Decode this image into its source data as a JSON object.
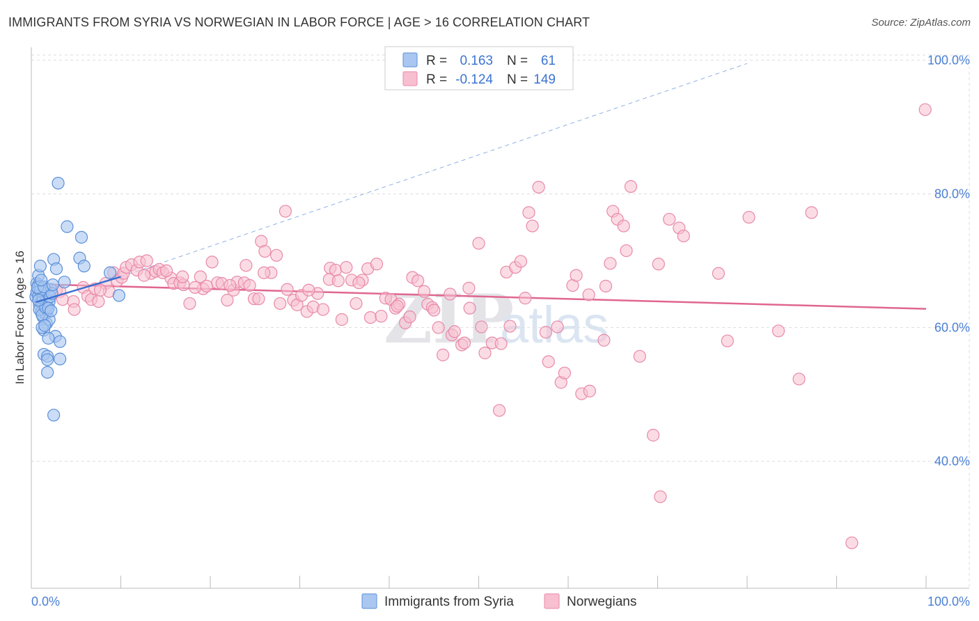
{
  "title": "IMMIGRANTS FROM SYRIA VS NORWEGIAN IN LABOR FORCE | AGE > 16 CORRELATION CHART",
  "source": "Source: ZipAtlas.com",
  "watermark": {
    "zip": "ZIP",
    "atlas": "atlas"
  },
  "colors": {
    "syria_fill": "#a9c7f0",
    "syria_stroke": "#5b8fd9",
    "syria_line": "#3b6fd1",
    "norway_fill": "#f7bfd0",
    "norway_stroke": "#e889a8",
    "norway_line": "#e06690",
    "grid": "#dddddd",
    "axis_label": "#4a7fd4"
  },
  "legend": {
    "rows": [
      {
        "r_label": "R =",
        "r_value": "0.163",
        "n_label": "N =",
        "n_value": "61"
      },
      {
        "r_label": "R =",
        "r_value": "-0.124",
        "n_label": "N =",
        "n_value": "149"
      }
    ]
  },
  "chart_data": {
    "type": "scatter",
    "title": "IMMIGRANTS FROM SYRIA VS NORWEGIAN IN LABOR FORCE | AGE > 16 CORRELATION CHART",
    "xlabel": "",
    "ylabel": "In Labor Force | Age > 16",
    "xlim": [
      0,
      100
    ],
    "ylim": [
      21,
      101.5
    ],
    "x_tick_labels": [
      "0.0%",
      "100.0%"
    ],
    "y_ticks": [
      40,
      60,
      80,
      100
    ],
    "y_tick_labels": [
      "40.0%",
      "60.0%",
      "80.0%",
      "100.0%"
    ],
    "grid": true,
    "legend_position": "top-center",
    "series": [
      {
        "name": "Immigrants from Syria",
        "r": 0.163,
        "n": 61,
        "trend": {
          "x": [
            0.5,
            10
          ],
          "y": [
            63.8,
            67.6
          ]
        },
        "trend_dashed": {
          "x": [
            10,
            80
          ],
          "y": [
            67.6,
            99.5
          ]
        },
        "points": [
          [
            0.6,
            66.6
          ],
          [
            0.7,
            65.9
          ],
          [
            0.8,
            66.4
          ],
          [
            0.9,
            65.0
          ],
          [
            1.0,
            66.2
          ],
          [
            0.5,
            64.6
          ],
          [
            1.2,
            64.9
          ],
          [
            0.9,
            63.4
          ],
          [
            1.4,
            65.2
          ],
          [
            1.1,
            62.3
          ],
          [
            0.8,
            67.8
          ],
          [
            1.0,
            69.2
          ],
          [
            1.5,
            63.2
          ],
          [
            1.3,
            61.6
          ],
          [
            1.6,
            62.1
          ],
          [
            1.8,
            62.6
          ],
          [
            1.7,
            60.6
          ],
          [
            1.4,
            59.6
          ],
          [
            1.2,
            60.0
          ],
          [
            2.0,
            61.2
          ],
          [
            2.2,
            65.7
          ],
          [
            2.5,
            70.2
          ],
          [
            2.7,
            58.7
          ],
          [
            1.9,
            58.4
          ],
          [
            3.2,
            57.9
          ],
          [
            1.4,
            56.0
          ],
          [
            1.8,
            55.7
          ],
          [
            1.8,
            55.2
          ],
          [
            3.2,
            55.3
          ],
          [
            1.8,
            53.3
          ],
          [
            2.5,
            46.9
          ],
          [
            3.0,
            81.6
          ],
          [
            4.0,
            75.1
          ],
          [
            5.6,
            73.5
          ],
          [
            5.4,
            70.4
          ],
          [
            5.9,
            69.2
          ],
          [
            2.8,
            68.8
          ],
          [
            3.7,
            66.8
          ],
          [
            8.8,
            68.2
          ],
          [
            9.8,
            64.8
          ],
          [
            0.6,
            65.3
          ],
          [
            0.8,
            64.7
          ],
          [
            1.1,
            63.7
          ],
          [
            1.3,
            64.4
          ],
          [
            1.5,
            65.8
          ],
          [
            1.7,
            64.1
          ],
          [
            2.0,
            63.9
          ],
          [
            0.9,
            62.7
          ],
          [
            1.2,
            61.9
          ],
          [
            1.6,
            63.0
          ],
          [
            2.1,
            64.6
          ],
          [
            2.3,
            65.1
          ],
          [
            1.0,
            65.5
          ],
          [
            0.7,
            66.0
          ],
          [
            1.4,
            66.1
          ],
          [
            1.9,
            62.9
          ],
          [
            2.2,
            62.5
          ],
          [
            1.1,
            67.1
          ],
          [
            0.8,
            64.1
          ],
          [
            1.5,
            60.3
          ],
          [
            2.4,
            66.4
          ]
        ]
      },
      {
        "name": "Norwegians",
        "r": -0.124,
        "n": 149,
        "trend": {
          "x": [
            0.5,
            100
          ],
          "y": [
            66.5,
            62.8
          ]
        },
        "points": [
          [
            2.8,
            65.6
          ],
          [
            3.2,
            65.4
          ],
          [
            3.5,
            64.2
          ],
          [
            4.7,
            63.9
          ],
          [
            4.8,
            62.7
          ],
          [
            5.8,
            66.0
          ],
          [
            6.3,
            64.7
          ],
          [
            6.7,
            64.2
          ],
          [
            7.1,
            65.8
          ],
          [
            7.5,
            63.9
          ],
          [
            8.3,
            66.6
          ],
          [
            8.7,
            65.4
          ],
          [
            9.2,
            68.2
          ],
          [
            9.6,
            67.0
          ],
          [
            10.1,
            67.5
          ],
          [
            10.3,
            68.1
          ],
          [
            10.6,
            69.0
          ],
          [
            11.2,
            69.4
          ],
          [
            11.8,
            68.6
          ],
          [
            12.1,
            69.8
          ],
          [
            12.9,
            70.0
          ],
          [
            13.4,
            68.1
          ],
          [
            13.9,
            68.4
          ],
          [
            14.3,
            68.7
          ],
          [
            14.7,
            68.2
          ],
          [
            15.6,
            67.4
          ],
          [
            15.9,
            66.6
          ],
          [
            16.6,
            66.7
          ],
          [
            17.0,
            66.4
          ],
          [
            16.9,
            67.6
          ],
          [
            17.7,
            63.6
          ],
          [
            18.9,
            67.6
          ],
          [
            19.2,
            65.8
          ],
          [
            19.6,
            66.2
          ],
          [
            20.2,
            69.8
          ],
          [
            20.8,
            66.7
          ],
          [
            21.3,
            66.6
          ],
          [
            21.9,
            64.1
          ],
          [
            22.6,
            65.6
          ],
          [
            23.0,
            66.8
          ],
          [
            23.8,
            66.7
          ],
          [
            24.0,
            69.3
          ],
          [
            24.4,
            66.3
          ],
          [
            24.9,
            64.3
          ],
          [
            25.4,
            64.3
          ],
          [
            25.7,
            72.9
          ],
          [
            26.1,
            71.4
          ],
          [
            26.8,
            68.2
          ],
          [
            27.4,
            70.8
          ],
          [
            28.4,
            77.4
          ],
          [
            27.8,
            63.6
          ],
          [
            28.6,
            65.7
          ],
          [
            29.3,
            64.1
          ],
          [
            29.7,
            63.4
          ],
          [
            30.2,
            64.8
          ],
          [
            30.8,
            62.4
          ],
          [
            31.5,
            63.1
          ],
          [
            32.0,
            65.1
          ],
          [
            32.6,
            62.7
          ],
          [
            33.4,
            68.9
          ],
          [
            33.3,
            67.2
          ],
          [
            34.0,
            68.6
          ],
          [
            34.3,
            67.0
          ],
          [
            34.7,
            61.2
          ],
          [
            35.2,
            69.0
          ],
          [
            35.8,
            67.1
          ],
          [
            36.3,
            63.6
          ],
          [
            37.0,
            67.1
          ],
          [
            37.6,
            68.8
          ],
          [
            37.9,
            61.5
          ],
          [
            38.6,
            69.5
          ],
          [
            39.1,
            61.7
          ],
          [
            39.6,
            64.4
          ],
          [
            40.2,
            64.2
          ],
          [
            40.7,
            62.9
          ],
          [
            41.1,
            63.5
          ],
          [
            41.8,
            60.7
          ],
          [
            42.3,
            61.6
          ],
          [
            42.6,
            67.5
          ],
          [
            43.2,
            67.0
          ],
          [
            43.9,
            65.4
          ],
          [
            44.3,
            63.5
          ],
          [
            44.8,
            63.0
          ],
          [
            45.5,
            60.0
          ],
          [
            46.0,
            55.9
          ],
          [
            46.8,
            65.0
          ],
          [
            47.0,
            58.9
          ],
          [
            47.3,
            59.4
          ],
          [
            48.1,
            57.4
          ],
          [
            48.4,
            57.7
          ],
          [
            49.0,
            62.9
          ],
          [
            48.9,
            65.9
          ],
          [
            50.0,
            72.6
          ],
          [
            50.7,
            56.2
          ],
          [
            51.5,
            57.7
          ],
          [
            52.3,
            47.6
          ],
          [
            52.5,
            57.6
          ],
          [
            53.1,
            68.3
          ],
          [
            53.5,
            60.2
          ],
          [
            54.1,
            69.0
          ],
          [
            54.7,
            69.9
          ],
          [
            55.2,
            64.4
          ],
          [
            55.6,
            77.2
          ],
          [
            56.0,
            75.2
          ],
          [
            56.7,
            81.0
          ],
          [
            57.5,
            59.3
          ],
          [
            57.8,
            54.9
          ],
          [
            58.8,
            60.1
          ],
          [
            59.2,
            51.8
          ],
          [
            59.6,
            53.2
          ],
          [
            60.5,
            66.3
          ],
          [
            60.9,
            67.8
          ],
          [
            61.5,
            50.1
          ],
          [
            62.4,
            50.5
          ],
          [
            62.3,
            64.9
          ],
          [
            64.2,
            66.2
          ],
          [
            64.0,
            58.1
          ],
          [
            64.7,
            69.6
          ],
          [
            65.0,
            77.4
          ],
          [
            65.5,
            76.2
          ],
          [
            66.2,
            75.2
          ],
          [
            66.5,
            71.5
          ],
          [
            67.0,
            81.1
          ],
          [
            68.0,
            55.7
          ],
          [
            69.5,
            43.9
          ],
          [
            70.3,
            34.7
          ],
          [
            70.1,
            69.5
          ],
          [
            71.3,
            76.2
          ],
          [
            72.4,
            74.9
          ],
          [
            72.9,
            73.7
          ],
          [
            77.8,
            58.0
          ],
          [
            76.8,
            68.1
          ],
          [
            80.2,
            76.5
          ],
          [
            83.5,
            59.5
          ],
          [
            87.2,
            77.2
          ],
          [
            85.8,
            52.3
          ],
          [
            91.7,
            27.8
          ],
          [
            99.9,
            92.6
          ],
          [
            7.7,
            65.6
          ],
          [
            12.6,
            67.8
          ],
          [
            15.1,
            68.5
          ],
          [
            18.3,
            66.0
          ],
          [
            22.2,
            66.3
          ],
          [
            26.0,
            68.2
          ],
          [
            31.0,
            65.6
          ],
          [
            36.6,
            66.7
          ],
          [
            40.9,
            63.2
          ],
          [
            45.0,
            62.6
          ],
          [
            50.3,
            60.1
          ]
        ]
      }
    ]
  }
}
